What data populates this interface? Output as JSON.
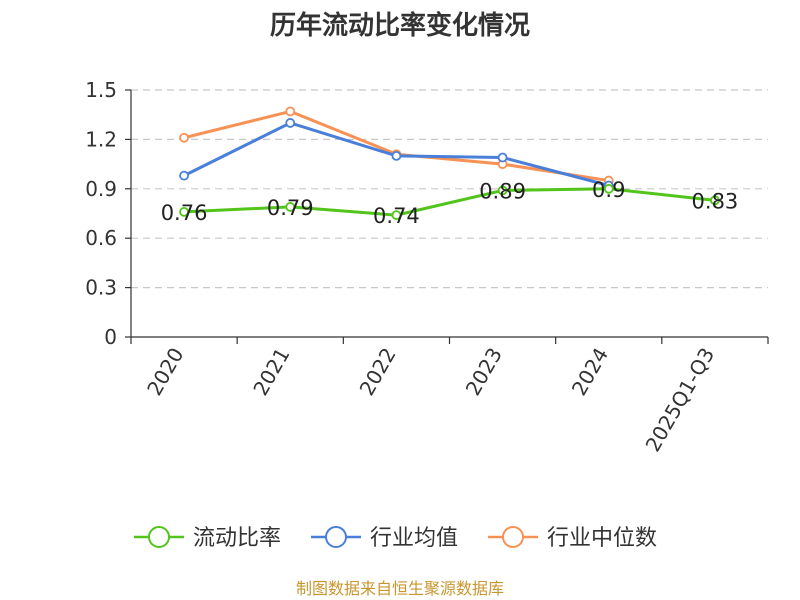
{
  "chart_data": {
    "type": "line",
    "title": "历年流动比率变化情况",
    "categories": [
      "2020",
      "2021",
      "2022",
      "2023",
      "2024",
      "2025Q1-Q3"
    ],
    "ylim": [
      0,
      1.5
    ],
    "yticks": [
      "0",
      "0.3",
      "0.6",
      "0.9",
      "1.2",
      "1.5"
    ],
    "grid": true,
    "legend_position": "bottom",
    "series": [
      {
        "name": "流动比率",
        "color": "#52c41a",
        "values": [
          0.76,
          0.79,
          0.74,
          0.89,
          0.9,
          0.83
        ],
        "labels": [
          "0.76",
          "0.79",
          "0.74",
          "0.89",
          "0.9",
          "0.83"
        ]
      },
      {
        "name": "行业均值",
        "color": "#4a7fd9",
        "values": [
          0.98,
          1.3,
          1.1,
          1.09,
          0.92,
          null
        ]
      },
      {
        "name": "行业中位数",
        "color": "#f79154",
        "values": [
          1.21,
          1.37,
          1.11,
          1.05,
          0.95,
          null
        ]
      }
    ]
  },
  "source": "制图数据来自恒生聚源数据库"
}
